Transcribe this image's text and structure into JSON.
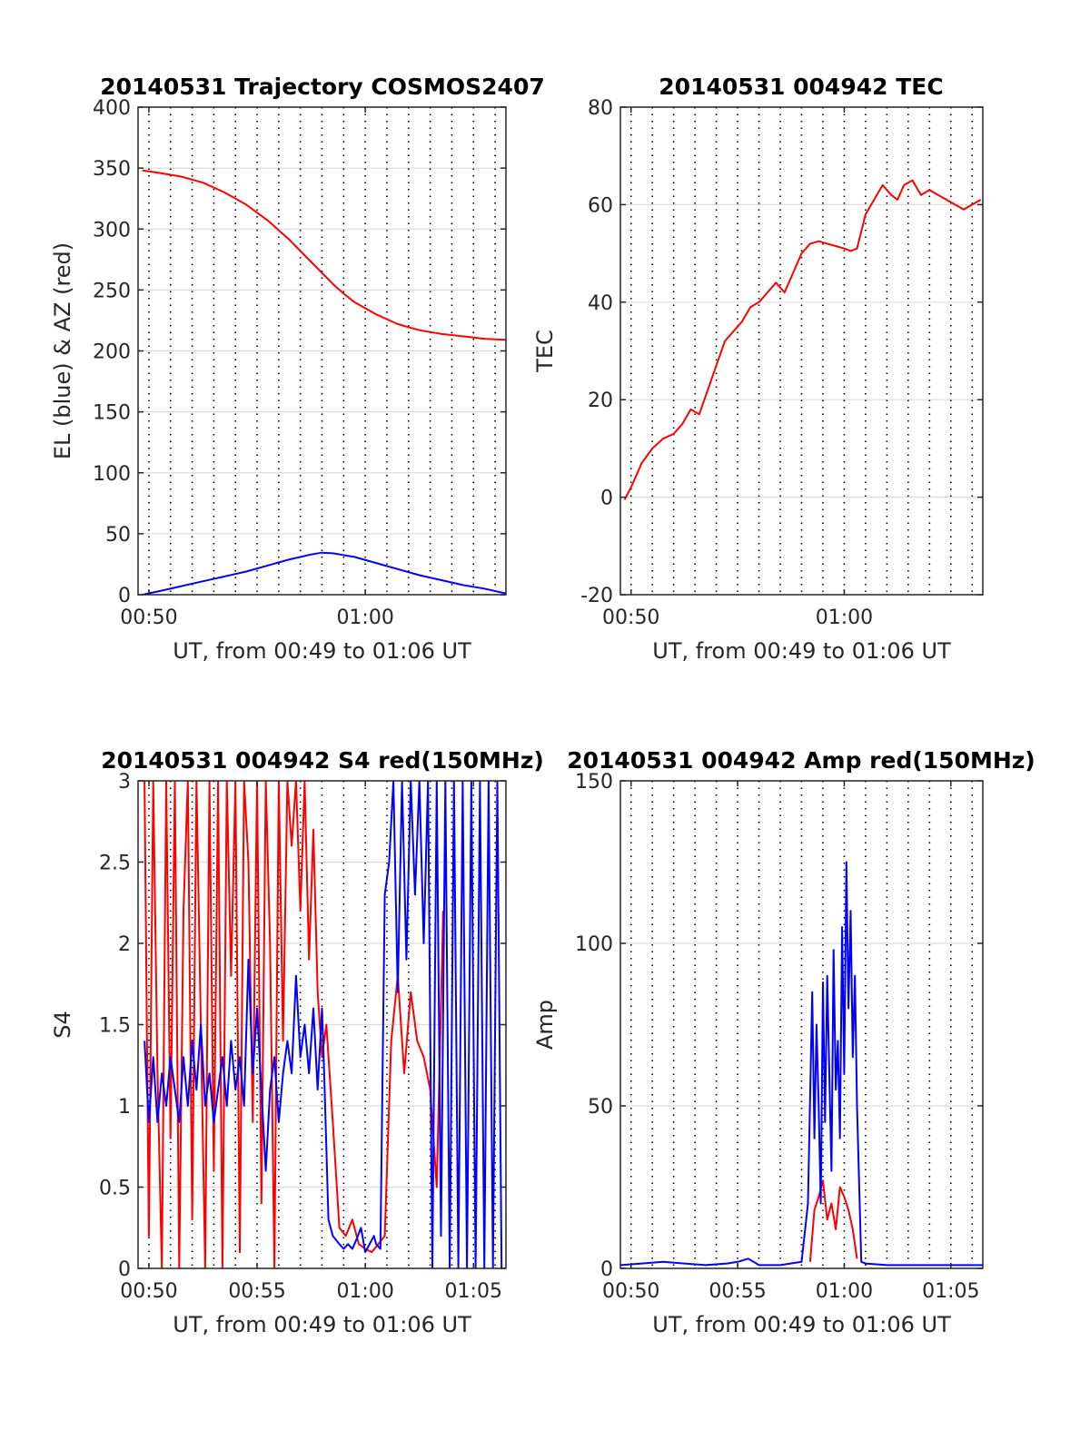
{
  "chart_data": [
    {
      "type": "line",
      "title": "20140531 Trajectory COSMOS2407",
      "xlabel": "UT, from 00:49 to 01:06 UT",
      "ylabel": "EL (blue) & AZ (red)",
      "x_unit": "minutes since 00:00 UT",
      "xlim": [
        49.5,
        66.5
      ],
      "ylim": [
        0,
        400
      ],
      "yticks": [
        0,
        50,
        100,
        150,
        200,
        250,
        300,
        350,
        400
      ],
      "xticks": [
        {
          "value": 50,
          "label": "00:50"
        },
        {
          "value": 60,
          "label": "01:00"
        }
      ],
      "vgrid_dotted": [
        50,
        51,
        52,
        53,
        54,
        55,
        56,
        57,
        58,
        59,
        60,
        61,
        62,
        63,
        64,
        65,
        66
      ],
      "grid": true,
      "series": [
        {
          "name": "AZ",
          "color": "#ff0000",
          "x": [
            49.7,
            50.5,
            51.5,
            52.5,
            53.5,
            54.5,
            55.5,
            56.5,
            57.5,
            58.5,
            59.0,
            59.5,
            60.5,
            61.5,
            62.5,
            63.5,
            64.5,
            65.5,
            66.5
          ],
          "y": [
            348,
            346,
            343,
            338,
            330,
            320,
            307,
            291,
            273,
            255,
            247,
            240,
            230,
            222,
            217,
            214,
            212,
            210,
            209
          ]
        },
        {
          "name": "EL",
          "color": "#0000ff",
          "x": [
            49.7,
            50.5,
            51.5,
            52.5,
            53.5,
            54.5,
            55.5,
            56.5,
            57.5,
            58.0,
            58.5,
            59.5,
            60.5,
            61.5,
            62.5,
            63.5,
            64.5,
            65.5,
            66.5
          ],
          "y": [
            0,
            3,
            7,
            11,
            15,
            19,
            24,
            29,
            33,
            34.5,
            34,
            31,
            26,
            21,
            16,
            12,
            8,
            5,
            1
          ]
        }
      ]
    },
    {
      "type": "line",
      "title": "20140531 004942 TEC",
      "xlabel": "UT, from 00:49 to 01:06 UT",
      "ylabel": "TEC",
      "x_unit": "minutes since 00:00 UT",
      "xlim": [
        49.5,
        66.5
      ],
      "ylim": [
        -20,
        80
      ],
      "yticks": [
        -20,
        0,
        20,
        40,
        60,
        80
      ],
      "xticks": [
        {
          "value": 50,
          "label": "00:50"
        },
        {
          "value": 60,
          "label": "01:00"
        }
      ],
      "vgrid_dotted": [
        50,
        51,
        52,
        53,
        54,
        55,
        56,
        57,
        58,
        59,
        60,
        61,
        62,
        63,
        64,
        65,
        66
      ],
      "grid": true,
      "series": [
        {
          "name": "TEC",
          "color": "#ff0000",
          "x": [
            49.7,
            50.0,
            50.5,
            51.0,
            51.5,
            52.0,
            52.4,
            52.8,
            53.2,
            53.6,
            54.0,
            54.4,
            54.8,
            55.2,
            55.6,
            56.0,
            56.4,
            56.8,
            57.2,
            57.6,
            58.0,
            58.4,
            58.8,
            59.2,
            59.6,
            60.0,
            60.3,
            60.6,
            61.0,
            61.4,
            61.8,
            62.2,
            62.5,
            62.8,
            63.2,
            63.6,
            64.0,
            64.4,
            64.8,
            65.2,
            65.6,
            66.0,
            66.4
          ],
          "y": [
            -0.5,
            2,
            7,
            10,
            12,
            13,
            15,
            18,
            17,
            22,
            27,
            32,
            34,
            36,
            39,
            40,
            42,
            44,
            42,
            46,
            50,
            52,
            52.5,
            52,
            51.5,
            51,
            50.5,
            51,
            58,
            61,
            64,
            62,
            61,
            64,
            65,
            62,
            63,
            62,
            61,
            60,
            59,
            60,
            61
          ]
        }
      ]
    },
    {
      "type": "line",
      "title": "20140531 004942 S4 red(150MHz)",
      "xlabel": "UT, from 00:49 to 01:06 UT",
      "ylabel": "S4",
      "x_unit": "minutes since 00:00 UT",
      "xlim": [
        49.5,
        66.5
      ],
      "ylim": [
        0,
        3
      ],
      "yticks": [
        0,
        0.5,
        1,
        1.5,
        2,
        2.5,
        3
      ],
      "xticks": [
        {
          "value": 50,
          "label": "00:50"
        },
        {
          "value": 55,
          "label": "00:55"
        },
        {
          "value": 60,
          "label": "01:00"
        },
        {
          "value": 65,
          "label": "01:05"
        }
      ],
      "vgrid_dotted": [
        50,
        51,
        52,
        53,
        54,
        55,
        56,
        57,
        58,
        59,
        60,
        61,
        62,
        63,
        64,
        65,
        66
      ],
      "grid": true,
      "series": [
        {
          "name": "S4 red",
          "color": "#ff0000",
          "x": [
            49.8,
            50.0,
            50.2,
            50.4,
            50.6,
            50.8,
            51.0,
            51.2,
            51.4,
            51.6,
            51.8,
            52.0,
            52.2,
            52.4,
            52.6,
            52.8,
            53.0,
            53.2,
            53.4,
            53.6,
            53.8,
            54.0,
            54.2,
            54.4,
            54.6,
            54.8,
            55.0,
            55.2,
            55.4,
            55.6,
            55.8,
            56.0,
            56.2,
            56.4,
            56.6,
            56.8,
            57.0,
            57.2,
            57.4,
            57.6,
            57.8,
            58.0,
            58.2,
            58.5,
            58.8,
            59.1,
            59.4,
            59.7,
            60.0,
            60.3,
            60.6,
            60.9,
            61.2,
            61.5,
            61.8,
            62.1,
            62.4,
            62.7,
            63.0,
            63.3,
            63.6
          ],
          "y": [
            3,
            0.2,
            3,
            1.2,
            0,
            3,
            0.8,
            3,
            0,
            2.2,
            3,
            0.3,
            3,
            1.5,
            0,
            3,
            0.6,
            3,
            0,
            3,
            1.8,
            3,
            0.1,
            3,
            2.5,
            0.9,
            3,
            0.4,
            3,
            2.0,
            0,
            3,
            1.4,
            3,
            2.6,
            3,
            2.2,
            3,
            1.9,
            2.7,
            1.7,
            1.3,
            1.5,
            0.9,
            0.25,
            0.2,
            0.3,
            0.15,
            0.12,
            0.1,
            0.15,
            0.2,
            1.4,
            1.8,
            1.2,
            1.7,
            1.4,
            1.3,
            1.1,
            0.5,
            2.2
          ]
        },
        {
          "name": "S4 blue",
          "color": "#0000ff",
          "x": [
            49.8,
            50.0,
            50.2,
            50.4,
            50.6,
            50.8,
            51.0,
            51.2,
            51.4,
            51.6,
            51.8,
            52.0,
            52.2,
            52.4,
            52.6,
            52.8,
            53.0,
            53.2,
            53.4,
            53.6,
            53.8,
            54.0,
            54.2,
            54.4,
            54.6,
            54.8,
            55.0,
            55.2,
            55.4,
            55.6,
            55.8,
            56.0,
            56.2,
            56.4,
            56.6,
            56.8,
            57.0,
            57.2,
            57.4,
            57.6,
            57.8,
            58.0,
            58.1,
            58.3,
            58.5,
            58.8,
            59.0,
            59.2,
            59.4,
            59.6,
            59.8,
            60.0,
            60.2,
            60.4,
            60.5,
            60.7,
            60.9,
            61.1,
            61.3,
            61.5,
            61.7,
            61.9,
            62.1,
            62.3,
            62.5,
            62.7,
            62.9,
            63.1,
            63.3,
            63.5,
            63.7,
            63.9,
            64.1,
            64.3,
            64.5,
            64.7,
            64.9,
            65.1,
            65.3,
            65.5,
            65.7,
            65.9,
            66.1,
            66.3
          ],
          "y": [
            1.4,
            0.9,
            1.3,
            0.9,
            1.2,
            1.0,
            1.3,
            1.1,
            0.9,
            1.3,
            1.0,
            1.4,
            1.1,
            1.5,
            1.0,
            1.2,
            0.9,
            1.1,
            1.3,
            1.0,
            1.4,
            1.1,
            1.3,
            1.0,
            1.9,
            1.2,
            1.6,
            1.1,
            0.6,
            1.1,
            1.3,
            0.9,
            1.2,
            1.4,
            1.2,
            1.8,
            1.3,
            1.5,
            1.2,
            1.6,
            1.1,
            1.6,
            1.2,
            0.3,
            0.2,
            0.15,
            0.12,
            0.15,
            0.12,
            0.18,
            0.25,
            0.1,
            0.15,
            0.2,
            0.15,
            0.12,
            2.3,
            2.5,
            3,
            1.7,
            3,
            1.9,
            3,
            2.3,
            3,
            2.0,
            3,
            0,
            3,
            0.2,
            3,
            0,
            3,
            0,
            3,
            0,
            3,
            0,
            3,
            0,
            3,
            0,
            3,
            0
          ]
        }
      ]
    },
    {
      "type": "line",
      "title": "20140531 004942 Amp red(150MHz)",
      "xlabel": "UT, from 00:49 to 01:06 UT",
      "ylabel": "Amp",
      "x_unit": "minutes since 00:00 UT",
      "xlim": [
        49.5,
        66.5
      ],
      "ylim": [
        0,
        150
      ],
      "yticks": [
        0,
        50,
        100,
        150
      ],
      "xticks": [
        {
          "value": 50,
          "label": "00:50"
        },
        {
          "value": 55,
          "label": "00:55"
        },
        {
          "value": 60,
          "label": "01:00"
        },
        {
          "value": 65,
          "label": "01:05"
        }
      ],
      "vgrid_dotted": [
        50,
        51,
        52,
        53,
        54,
        55,
        56,
        57,
        58,
        59,
        60,
        61,
        62,
        63,
        64,
        65,
        66
      ],
      "grid": true,
      "series": [
        {
          "name": "Amp red",
          "color": "#ff0000",
          "x": [
            58.4,
            58.6,
            58.8,
            59.0,
            59.2,
            59.4,
            59.6,
            59.8,
            60.0,
            60.2,
            60.4,
            60.6
          ],
          "y": [
            2,
            18,
            22,
            27,
            15,
            20,
            12,
            25,
            22,
            18,
            12,
            3
          ]
        },
        {
          "name": "Amp blue",
          "color": "#0000ff",
          "x": [
            49.5,
            50.5,
            51.5,
            52.5,
            53.5,
            54.5,
            55.0,
            55.5,
            56.0,
            57.0,
            58.0,
            58.3,
            58.5,
            58.6,
            58.7,
            58.8,
            58.9,
            59.0,
            59.1,
            59.2,
            59.3,
            59.4,
            59.5,
            59.6,
            59.7,
            59.8,
            59.9,
            60.0,
            60.1,
            60.2,
            60.3,
            60.4,
            60.5,
            60.6,
            60.8,
            61.0,
            62.0,
            63.0,
            64.0,
            65.0,
            66.0,
            66.5
          ],
          "y": [
            1,
            1.5,
            2,
            1.5,
            1,
            1.5,
            2,
            3,
            1,
            1,
            2,
            20,
            85,
            40,
            75,
            50,
            20,
            88,
            45,
            90,
            60,
            30,
            98,
            55,
            70,
            40,
            105,
            60,
            125,
            80,
            110,
            65,
            90,
            50,
            2,
            1.5,
            1,
            1,
            1,
            1,
            1,
            1
          ]
        }
      ]
    }
  ]
}
